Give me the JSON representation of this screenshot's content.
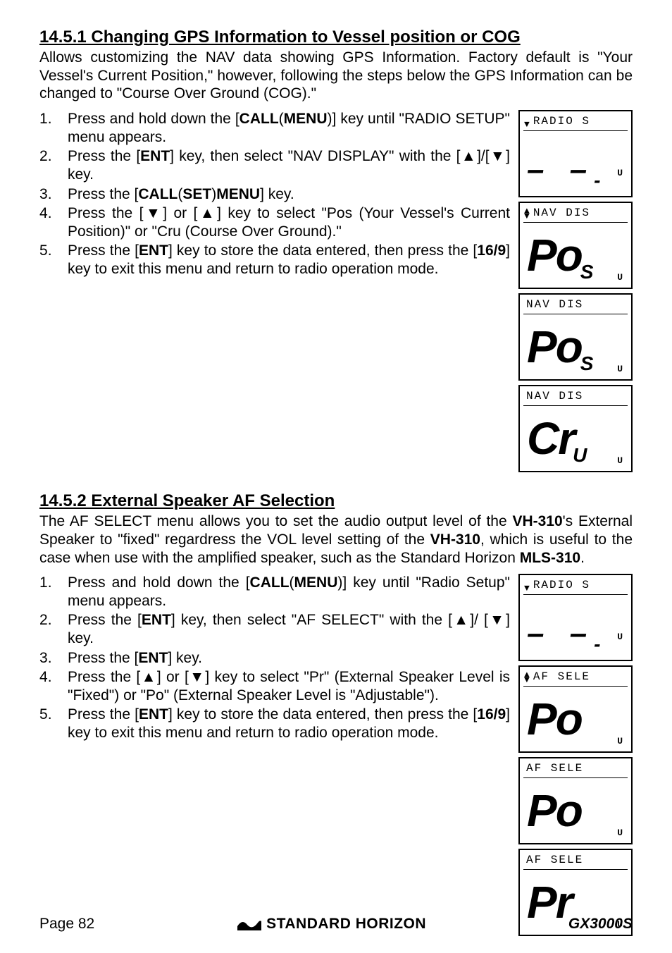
{
  "section1": {
    "heading": "14.5.1  Changing GPS Information to Vessel position or COG",
    "intro": "Allows customizing the NAV data showing GPS Information. Factory default is \"Your Vessel's Current Position,\" however, following the steps below the GPS Information can be changed to \"Course Over Ground (COG).\"",
    "steps": [
      "Press and hold down the [<b>CALL</b>(<b>MENU</b>)] key until \"RADIO SETUP\" menu appears.",
      "Press the [<b>ENT</b>] key, then select \"NAV DISPLAY\" with the [▲]/[▼] key.",
      "Press the [<b>CALL</b>(<b>SET</b>)<b>MENU</b>] key.",
      "Press the [▼] or [▲] key to select \"Pos (Your Vessel's Current Position)\" or \"Cru (Course Over Ground).\"",
      "Press the [<b>ENT</b>] key to store the data entered, then press the [<b>16/9</b>] key to exit this menu and return to radio operation mode."
    ],
    "lcds": [
      {
        "top_arrows": "down",
        "top": "RADIO S",
        "main": "--",
        "tail": "-",
        "u_pos": "shift"
      },
      {
        "top_arrows": "both",
        "top": "NAV  DIS",
        "main": "Po",
        "tail": "S",
        "u_pos": "normal"
      },
      {
        "top_arrows": "none",
        "top": "NAV  DIS",
        "main": "Po",
        "tail": "S",
        "u_pos": "normal"
      },
      {
        "top_arrows": "none",
        "top": "NAV  DIS",
        "main": "Cr",
        "tail": "U",
        "u_pos": "normal"
      }
    ]
  },
  "section2": {
    "heading": "14.5.2  External Speaker AF Selection",
    "intro": "The AF SELECT menu allows you to set the audio output level of the <b>VH-310</b>'s External Speaker to \"fixed\" regardress the VOL level setting of the <b>VH-310</b>, which is useful to the case when use with the amplified speaker, such as the Standard Horizon <b>MLS-310</b>.",
    "steps": [
      "Press and hold down the [<b>CALL</b>(<b>MENU</b>)] key until \"Radio Setup\" menu appears.",
      "Press the [<b>ENT</b>] key, then select \"AF SELECT\" with the [▲]/ [▼] key.",
      "Press the [<b>ENT</b>] key.",
      "Press the [▲] or [▼] key to select \"Pr\" (External Speaker Level is \"Fixed\") or \"Po\" (External Speaker Level is \"Adjustable\").",
      "Press the [<b>ENT</b>] key to store the data entered, then press the [<b>16/9</b>] key to exit this menu and return to radio operation mode."
    ],
    "lcds": [
      {
        "top_arrows": "down",
        "top": "RADIO S",
        "main": "--",
        "tail": "-",
        "u_pos": "shift"
      },
      {
        "top_arrows": "both",
        "top": "AF  SELE",
        "main": "Po",
        "tail": "",
        "u_pos": "normal"
      },
      {
        "top_arrows": "none",
        "top": "AF  SELE",
        "main": "Po",
        "tail": "",
        "u_pos": "normal"
      },
      {
        "top_arrows": "none",
        "top": "AF  SELE",
        "main": "Pr",
        "tail": "",
        "u_pos": "normal"
      }
    ]
  },
  "footer": {
    "page": "Page 82",
    "brand": "STANDARD HORIZON",
    "model": "GX3000S"
  }
}
